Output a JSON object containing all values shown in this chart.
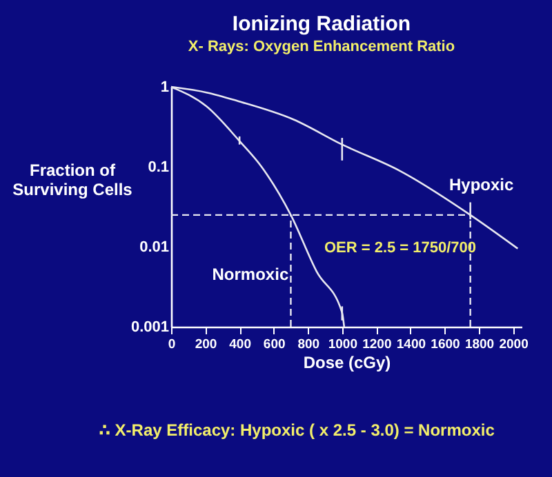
{
  "chart_data": {
    "type": "line",
    "title": "Ionizing Radiation",
    "subtitle": "X- Rays: Oxygen Enhancement Ratio",
    "xlabel": "Dose (cGy)",
    "ylabel": "Fraction of Surviving Cells",
    "series": [
      {
        "name": "Hypoxic",
        "color": "#e8e8f0",
        "x": [
          0,
          207,
          395,
          717,
          1000,
          1334,
          1750,
          2027
        ],
        "values": [
          1,
          0.85,
          0.66,
          0.39,
          0.19,
          0.09,
          0.025,
          0.0095
        ],
        "errors": [
          null,
          null,
          null,
          null,
          [
            0.12,
            0.23
          ],
          null,
          [
            0.022,
            0.036
          ],
          null
        ]
      },
      {
        "name": "Normoxic",
        "color": "#e8e8f0",
        "x": [
          0,
          207,
          400,
          529,
          700,
          851,
          1000,
          1012
        ],
        "values": [
          1,
          0.57,
          0.21,
          0.1,
          0.025,
          0.0049,
          0.0015,
          0.001
        ],
        "errors": [
          null,
          null,
          [
            0.19,
            0.24
          ],
          null,
          null,
          null,
          [
            0.0012,
            0.0018
          ],
          null
        ]
      }
    ],
    "xlim": [
      0,
      2050
    ],
    "xticks": [
      0,
      200,
      400,
      600,
      800,
      1000,
      1200,
      1400,
      1600,
      1800,
      2000
    ],
    "ylim": [
      0.001,
      1
    ],
    "yticks": [
      0.001,
      0.01,
      0.1,
      1
    ],
    "log": true,
    "grid": false,
    "marker": "none",
    "line_style": "solid",
    "ref_lines": [
      {
        "axis": "y",
        "value": 0.025,
        "color": "#e8e8f0",
        "line_style": "dashed"
      },
      {
        "axis": "x",
        "value": 700,
        "color": "#e8e8f0",
        "line_style": "dashed"
      },
      {
        "axis": "x",
        "value": 1750,
        "color": "#e8e8f0",
        "line_style": "dashed"
      }
    ],
    "annotations": [
      "OER = 2.5 = 1750/700",
      "∴ X-Ray Efficacy: Hypoxic ( x 2.5 - 3.0) = Normoxic"
    ]
  }
}
